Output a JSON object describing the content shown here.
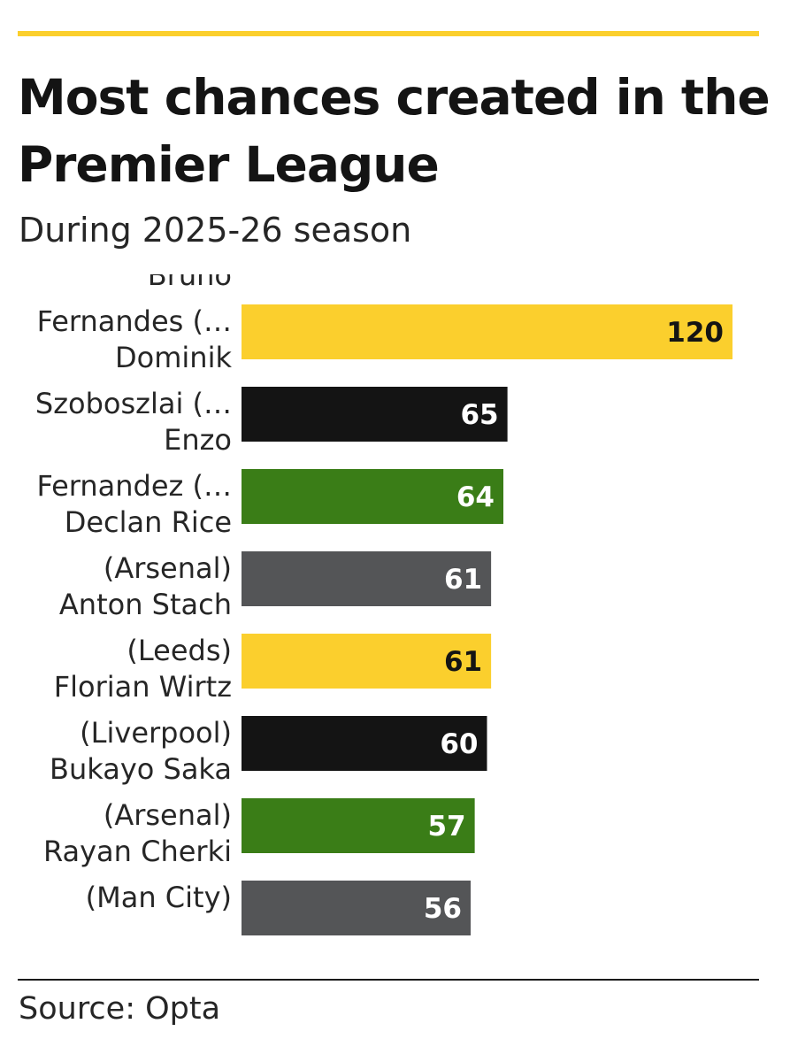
{
  "chart_data": {
    "type": "bar",
    "orientation": "horizontal",
    "title": "Most chances created in the Premier League",
    "subtitle": "During 2025-26 season",
    "source": "Source: Opta",
    "categories": [
      [
        "Bruno",
        "Fernandes (…"
      ],
      [
        "Dominik",
        "Szoboszlai (…"
      ],
      [
        "Enzo",
        "Fernandez (…"
      ],
      [
        "Declan Rice",
        "(Arsenal)"
      ],
      [
        "Anton Stach",
        "(Leeds)"
      ],
      [
        "Florian Wirtz",
        "(Liverpool)"
      ],
      [
        "Bukayo Saka",
        "(Arsenal)"
      ],
      [
        "Rayan Cherki",
        "(Man City)"
      ]
    ],
    "values": [
      120,
      65,
      64,
      61,
      61,
      60,
      57,
      56
    ],
    "bar_colors": [
      "#fbcf2d",
      "#141414",
      "#3a7d17",
      "#545557",
      "#fbcf2d",
      "#141414",
      "#3a7d17",
      "#545557"
    ],
    "value_label_colors": [
      "#141414",
      "#ffffff",
      "#ffffff",
      "#ffffff",
      "#141414",
      "#ffffff",
      "#ffffff",
      "#ffffff"
    ],
    "xlim": [
      0,
      120
    ],
    "grid": false,
    "legend": "none",
    "data_labels": "inside-end"
  },
  "colors": {
    "accent": "#fbcf2d",
    "text": "#1a1a1a"
  }
}
